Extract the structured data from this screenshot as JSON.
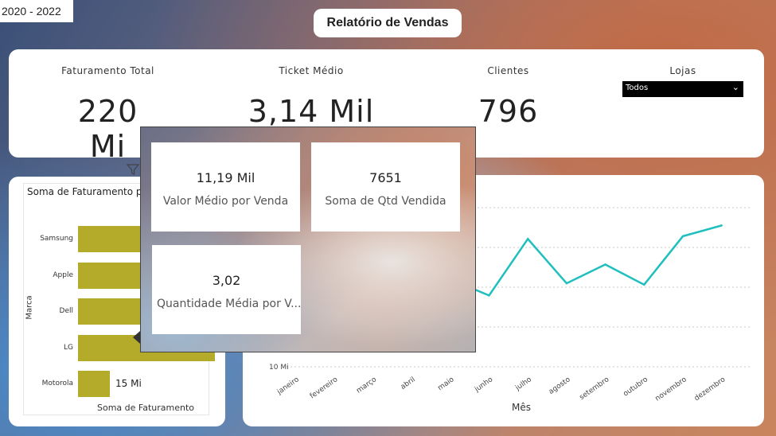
{
  "filter": {
    "year_range": "2020 - 2022"
  },
  "header": {
    "title": "Relatório de Vendas"
  },
  "kpis": [
    {
      "label": "Faturamento Total",
      "value": "220 Mi"
    },
    {
      "label": "Ticket Médio",
      "value": "3,14 Mil"
    },
    {
      "label": "Clientes",
      "value": "796"
    }
  ],
  "lojas": {
    "label": "Lojas",
    "selected": "Todos"
  },
  "bar_chart": {
    "title": "Soma de Faturamento por Marca",
    "ylabel": "Marca",
    "xlabel": "Soma de Faturamento",
    "visible_data_label": "15 Mi"
  },
  "line_chart": {
    "xlabel": "Mês",
    "y_tick_label": "10 Mi"
  },
  "tooltip": {
    "tiles": [
      {
        "value": "11,19 Mil",
        "label": "Valor Médio por Venda"
      },
      {
        "value": "7651",
        "label": "Soma de Qtd Vendida"
      },
      {
        "value": "3,02",
        "label": "Quantidade Média por V..."
      }
    ]
  },
  "chart_data": [
    {
      "type": "bar",
      "title": "Soma de Faturamento por Marca",
      "xlabel": "Soma de Faturamento",
      "ylabel": "Marca",
      "categories": [
        "Samsung",
        "Apple",
        "Dell",
        "LG",
        "Motorola"
      ],
      "values": [
        60,
        55,
        50,
        48,
        15
      ],
      "value_unit": "Mi",
      "data_labels": [
        "",
        "",
        "",
        "",
        "15 Mi"
      ],
      "color": "#b5ab2b"
    },
    {
      "type": "line",
      "xlabel": "Mês",
      "ylabel": "",
      "categories": [
        "janeiro",
        "fevereiro",
        "março",
        "abril",
        "maio",
        "junho",
        "julho",
        "agosto",
        "setembro",
        "outubro",
        "novembro",
        "dezembro"
      ],
      "values": [
        null,
        null,
        null,
        null,
        16.5,
        15.3,
        19.5,
        16.2,
        17.6,
        16.1,
        19.7,
        20.5
      ],
      "y_unit": "Mi",
      "y_ticks": [
        10
      ],
      "ylim": [
        10,
        22
      ],
      "grid": true,
      "color": "#1fbfbf"
    }
  ]
}
